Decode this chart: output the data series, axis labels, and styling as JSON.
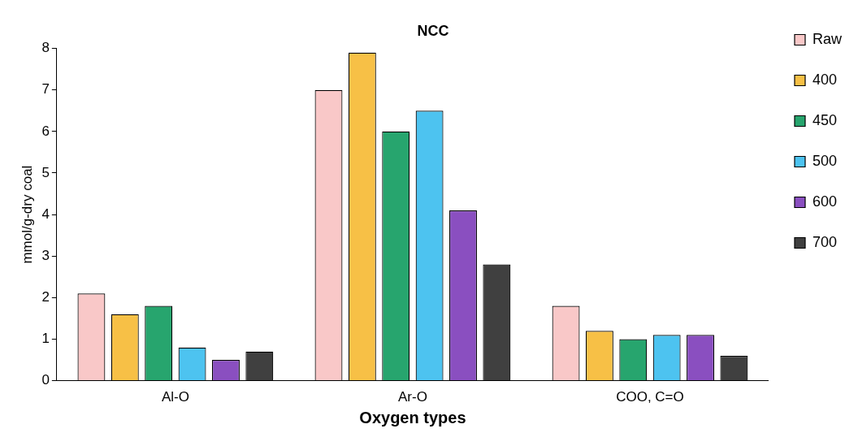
{
  "chart_data": {
    "type": "bar",
    "title": "NCC",
    "xlabel": "Oxygen types",
    "ylabel": "mmol/g-dry coal",
    "categories": [
      "Al-O",
      "Ar-O",
      "COO, C=O"
    ],
    "series": [
      {
        "name": "Raw",
        "color": "#f9c8c8",
        "values": [
          2.1,
          7.0,
          1.8
        ]
      },
      {
        "name": "400",
        "color": "#f7c046",
        "values": [
          1.6,
          7.9,
          1.2
        ]
      },
      {
        "name": "450",
        "color": "#27a56e",
        "values": [
          1.8,
          6.0,
          1.0
        ]
      },
      {
        "name": "500",
        "color": "#4dc3f0",
        "values": [
          0.8,
          6.5,
          1.1
        ]
      },
      {
        "name": "600",
        "color": "#8a4fc0",
        "values": [
          0.5,
          4.1,
          1.1
        ]
      },
      {
        "name": "700",
        "color": "#404040",
        "values": [
          0.7,
          2.8,
          0.6
        ]
      }
    ],
    "ylim": [
      0,
      8
    ],
    "yticks": [
      0,
      1,
      2,
      3,
      4,
      5,
      6,
      7,
      8
    ],
    "grid": false,
    "legend": "right"
  }
}
